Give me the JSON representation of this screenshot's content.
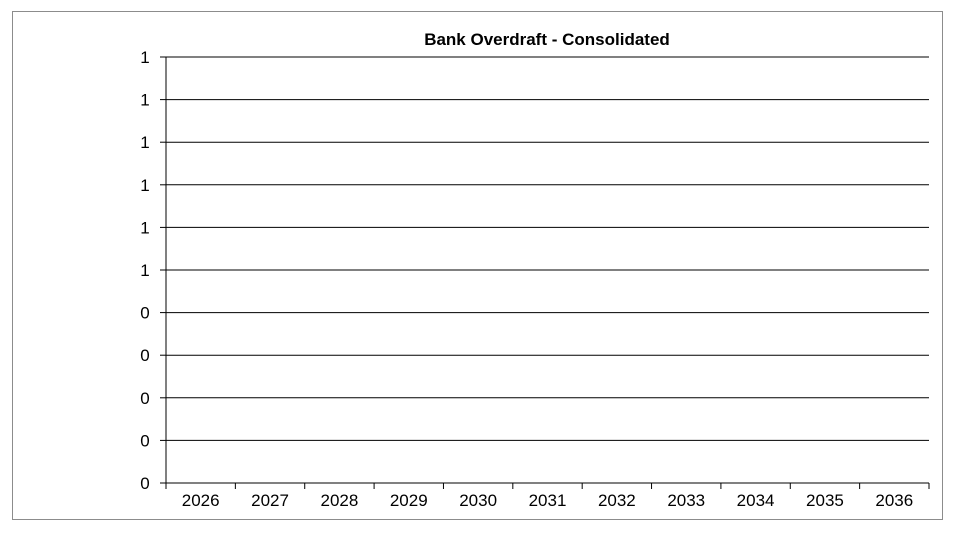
{
  "chart_data": {
    "type": "bar",
    "title": "Bank Overdraft - Consolidated",
    "xlabel": "",
    "ylabel": "",
    "categories": [
      "2026",
      "2027",
      "2028",
      "2029",
      "2030",
      "2031",
      "2032",
      "2033",
      "2034",
      "2035",
      "2036"
    ],
    "series": [
      {
        "values": [
          0,
          0,
          0,
          0,
          0,
          0,
          0,
          0,
          0,
          0,
          0
        ]
      }
    ],
    "ylim": [
      0,
      1
    ],
    "y_tick_labels": [
      "0",
      "0",
      "0",
      "0",
      "0",
      "1",
      "1",
      "1",
      "1",
      "1",
      "1"
    ],
    "grid": true,
    "legend": "none",
    "colors": {
      "axis": "#000000",
      "grid": "#000000",
      "frame": "#8c8c8c"
    }
  }
}
